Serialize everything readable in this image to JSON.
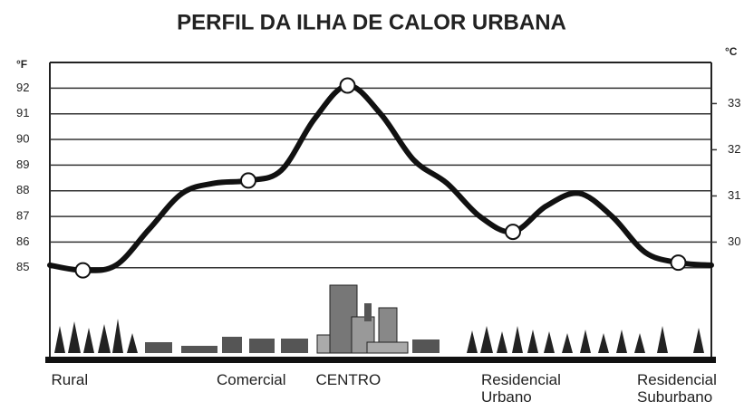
{
  "chart_data": {
    "type": "line",
    "title": "PERFIL DA ILHA DE CALOR URBANA",
    "ylabel": "°F",
    "y2label": "°C",
    "categories": [
      null,
      "Rural",
      null,
      null,
      null,
      null,
      "Comercial",
      null,
      null,
      "CENTRO",
      null,
      null,
      null,
      null,
      "Residencial Urbano",
      null,
      null,
      null,
      null,
      "Residencial Suburbano",
      null
    ],
    "series": [
      {
        "color": "#111111",
        "values": [
          85.1,
          84.9,
          85.1,
          86.5,
          87.9,
          88.3,
          88.4,
          88.8,
          90.8,
          92.1,
          91.0,
          89.2,
          88.3,
          87.0,
          86.4,
          87.4,
          87.9,
          87.0,
          85.6,
          85.2,
          85.1
        ]
      }
    ],
    "ylim": [
      81.5,
      93
    ],
    "yticks": [
      85,
      86,
      87,
      88,
      89,
      90,
      91,
      92
    ],
    "y2lim": [
      27.5,
      33.89
    ],
    "y2ticks": [
      30,
      31,
      32,
      33
    ],
    "grid": true
  }
}
